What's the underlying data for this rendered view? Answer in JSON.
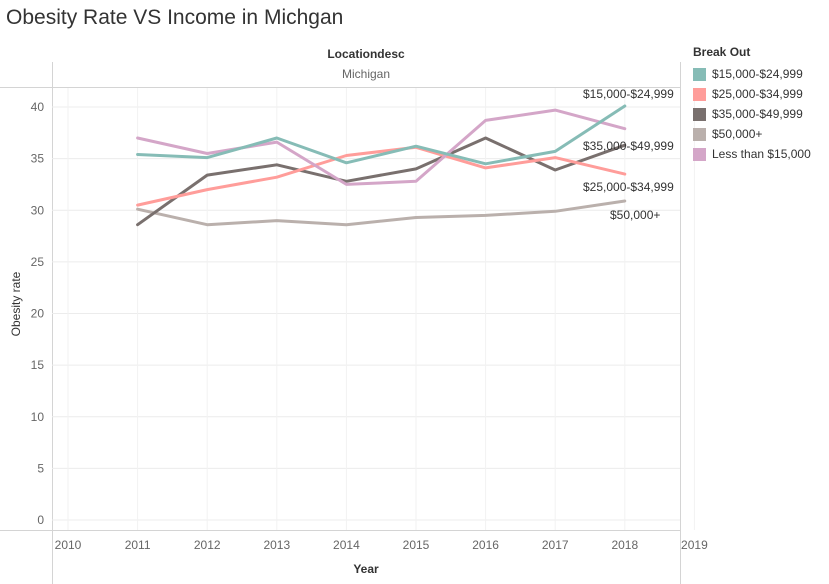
{
  "title": "Obesity Rate VS Income in Michgan",
  "chart_data": {
    "type": "line",
    "title": "Obesity Rate VS Income in Michgan",
    "column_header": "Locationdesc",
    "column_value": "Michigan",
    "xlabel": "Year",
    "ylabel": "Obesity rate",
    "x_ticks": [
      "2010",
      "2011",
      "2012",
      "2013",
      "2014",
      "2015",
      "2016",
      "2017",
      "2018",
      "2019"
    ],
    "y_ticks": [
      "0",
      "5",
      "10",
      "15",
      "20",
      "25",
      "30",
      "35",
      "40"
    ],
    "xlim": [
      2010,
      2019
    ],
    "ylim": [
      0,
      42
    ],
    "grid": true,
    "legend_position": "right",
    "legend_title": "Break Out",
    "x": [
      2011,
      2012,
      2013,
      2014,
      2015,
      2016,
      2017,
      2018
    ],
    "series": [
      {
        "name": "$15,000-$24,999",
        "color": "#86bcb6",
        "values": [
          35.4,
          35.1,
          37.0,
          34.6,
          36.2,
          34.5,
          35.7,
          40.1
        ],
        "end_label": "$15,000-$24,999"
      },
      {
        "name": "$25,000-$34,999",
        "color": "#ff9d9a",
        "values": [
          30.5,
          32.0,
          33.2,
          35.3,
          36.1,
          34.1,
          35.1,
          33.5
        ],
        "end_label": "$25,000-$34,999"
      },
      {
        "name": "$35,000-$49,999",
        "color": "#79706e",
        "values": [
          28.6,
          33.4,
          34.4,
          32.8,
          34.0,
          37.0,
          33.9,
          36.3
        ],
        "end_label": "$35,000-$49,999"
      },
      {
        "name": "$50,000+",
        "color": "#bab0ac",
        "values": [
          30.1,
          28.6,
          29.0,
          28.6,
          29.3,
          29.5,
          29.9,
          30.9
        ],
        "end_label": "$50,000+"
      },
      {
        "name": "Less than $15,000",
        "color": "#d4a6c8",
        "values": [
          37.0,
          35.5,
          36.6,
          32.5,
          32.8,
          38.7,
          39.7,
          37.9
        ],
        "end_label": ""
      }
    ]
  }
}
